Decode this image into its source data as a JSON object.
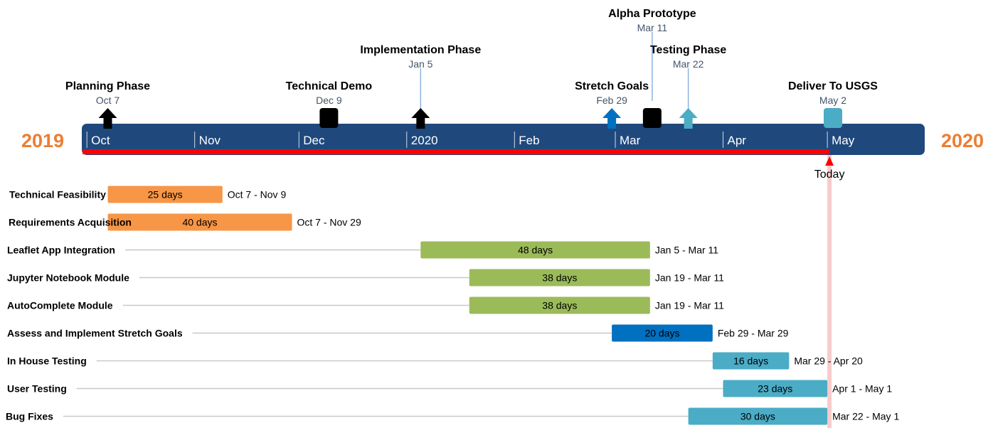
{
  "chart_data": {
    "type": "gantt",
    "timeline_start": "2019-10-01",
    "timeline_end": "2020-05-31",
    "years": {
      "left": "2019",
      "right": "2020"
    },
    "months": [
      {
        "label": "Oct",
        "date": "2019-10-01"
      },
      {
        "label": "Nov",
        "date": "2019-11-01"
      },
      {
        "label": "Dec",
        "date": "2019-12-01"
      },
      {
        "label": "2020",
        "date": "2020-01-01"
      },
      {
        "label": "Feb",
        "date": "2020-02-01"
      },
      {
        "label": "Mar",
        "date": "2020-03-01"
      },
      {
        "label": "Apr",
        "date": "2020-04-01"
      },
      {
        "label": "May",
        "date": "2020-05-01"
      }
    ],
    "milestones": [
      {
        "title": "Planning Phase",
        "date_label": "Oct 7",
        "date": "2019-10-07",
        "shape": "arrow",
        "color": "#000000",
        "tier": 0
      },
      {
        "title": "Technical Demo",
        "date_label": "Dec 9",
        "date": "2019-12-09",
        "shape": "square",
        "color": "#000000",
        "tier": 0
      },
      {
        "title": "Implementation Phase",
        "date_label": "Jan 5",
        "date": "2020-01-05",
        "shape": "arrow",
        "color": "#000000",
        "tier": 1
      },
      {
        "title": "Stretch Goals",
        "date_label": "Feb 29",
        "date": "2020-02-29",
        "shape": "arrow",
        "color": "#0070c0",
        "tier": 0
      },
      {
        "title": "Alpha Prototype",
        "date_label": "Mar 11",
        "date": "2020-03-11",
        "shape": "square",
        "color": "#000000",
        "tier": 2
      },
      {
        "title": "Testing Phase",
        "date_label": "Mar 22",
        "date": "2020-03-22",
        "shape": "arrow",
        "color": "#4bacc6",
        "tier": 1
      },
      {
        "title": "Deliver To USGS",
        "date_label": "May 2",
        "date": "2020-05-02",
        "shape": "square",
        "color": "#4bacc6",
        "tier": 0
      }
    ],
    "today": {
      "label": "Today",
      "date": "2020-05-01"
    },
    "tasks": [
      {
        "name": "Technical Feasibility",
        "start": "2019-10-07",
        "end": "2019-11-09",
        "duration_label": "25 days",
        "range_label": "Oct 7 - Nov 9",
        "color": "#f79646"
      },
      {
        "name": "Requirements Acquisition",
        "start": "2019-10-07",
        "end": "2019-11-29",
        "duration_label": "40 days",
        "range_label": "Oct 7 - Nov 29",
        "color": "#f79646"
      },
      {
        "name": "Leaflet App Integration",
        "start": "2020-01-05",
        "end": "2020-03-11",
        "duration_label": "48 days",
        "range_label": "Jan 5 - Mar 11",
        "color": "#9bbb59"
      },
      {
        "name": "Jupyter Notebook Module",
        "start": "2020-01-19",
        "end": "2020-03-11",
        "duration_label": "38 days",
        "range_label": "Jan 19 - Mar 11",
        "color": "#9bbb59"
      },
      {
        "name": "AutoComplete Module",
        "start": "2020-01-19",
        "end": "2020-03-11",
        "duration_label": "38 days",
        "range_label": "Jan 19 - Mar 11",
        "color": "#9bbb59"
      },
      {
        "name": "Assess and Implement Stretch Goals",
        "start": "2020-02-29",
        "end": "2020-03-29",
        "duration_label": "20 days",
        "range_label": "Feb 29 - Mar 29",
        "color": "#0070c0"
      },
      {
        "name": "In House Testing",
        "start": "2020-03-29",
        "end": "2020-04-20",
        "duration_label": "16 days",
        "range_label": "Mar 29 - Apr 20",
        "color": "#4bacc6"
      },
      {
        "name": "User Testing",
        "start": "2020-04-01",
        "end": "2020-05-01",
        "duration_label": "23 days",
        "range_label": "Apr 1 - May 1",
        "color": "#4bacc6"
      },
      {
        "name": "Bug Fixes",
        "start": "2020-03-22",
        "end": "2020-05-01",
        "duration_label": "30 days",
        "range_label": "Mar 22 - May 1",
        "color": "#4bacc6"
      }
    ],
    "colors": {
      "bar": "#1f497d",
      "progress": "#ff0000",
      "today_marker": "#ff0000",
      "today_line": "#f8cbcb",
      "year_text": "#ed7d31",
      "leader": "#c8c8c8"
    }
  }
}
